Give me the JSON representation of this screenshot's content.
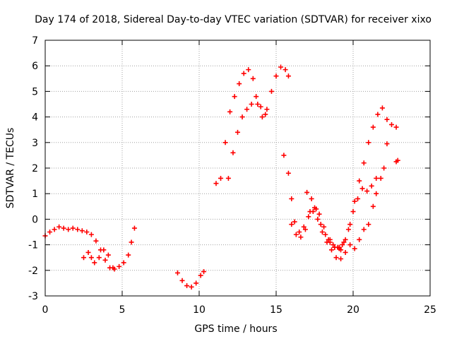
{
  "chart_data": {
    "type": "scatter",
    "title": "Day 174 of 2018, Sidereal Day-to-day VTEC variation (SDTVAR) for receiver xixo",
    "xlabel": "GPS time / hours",
    "ylabel": "SDTVAR / TECUs",
    "xlim": [
      0,
      25
    ],
    "ylim": [
      -3,
      7
    ],
    "xticks": [
      0,
      5,
      10,
      15,
      20,
      25
    ],
    "yticks": [
      -3,
      -2,
      -1,
      0,
      1,
      2,
      3,
      4,
      5,
      6,
      7
    ],
    "grid": true,
    "marker": "+",
    "color": "#ff0000",
    "series": [
      {
        "name": "arc-1",
        "x": [
          0.0,
          0.3,
          0.6,
          0.9,
          1.2,
          1.5,
          1.8,
          2.1,
          2.4,
          2.7,
          3.0,
          3.3,
          3.6,
          3.9,
          4.2,
          4.5,
          4.8,
          5.1,
          5.4,
          5.6,
          5.8
        ],
        "y": [
          -0.65,
          -0.5,
          -0.4,
          -0.3,
          -0.35,
          -0.4,
          -0.35,
          -0.4,
          -0.45,
          -0.5,
          -0.6,
          -0.85,
          -1.2,
          -1.6,
          -1.9,
          -1.95,
          -1.85,
          -1.7,
          -1.4,
          -0.9,
          -0.35
        ]
      },
      {
        "name": "arc-2",
        "x": [
          2.5,
          2.8,
          3.0,
          3.2,
          3.5,
          3.8,
          4.1,
          4.4
        ],
        "y": [
          -1.5,
          -1.3,
          -1.5,
          -1.7,
          -1.5,
          -1.2,
          -1.4,
          -1.9
        ]
      },
      {
        "name": "arc-3",
        "x": [
          8.6,
          8.9,
          9.2,
          9.5,
          9.8,
          10.1,
          10.3
        ],
        "y": [
          -2.1,
          -2.4,
          -2.6,
          -2.65,
          -2.5,
          -2.2,
          -2.05
        ]
      },
      {
        "name": "arc-4",
        "x": [
          11.1,
          11.4,
          11.7,
          12.0,
          12.3,
          12.6,
          12.9,
          13.2,
          13.5,
          13.8,
          14.1,
          14.4,
          14.7,
          15.0,
          15.3,
          15.6,
          15.8
        ],
        "y": [
          1.4,
          1.6,
          3.0,
          4.2,
          4.8,
          5.3,
          5.7,
          5.85,
          5.5,
          4.5,
          4.0,
          4.3,
          5.0,
          5.6,
          5.95,
          5.85,
          5.6
        ]
      },
      {
        "name": "arc-5",
        "x": [
          11.9,
          12.2,
          12.5,
          12.8,
          13.1,
          13.4,
          13.7,
          14.0,
          14.3
        ],
        "y": [
          1.6,
          2.6,
          3.4,
          4.0,
          4.3,
          4.5,
          4.8,
          4.4,
          4.1
        ]
      },
      {
        "name": "arc-6",
        "x": [
          15.5,
          15.8,
          16.0,
          16.2,
          16.5,
          16.8,
          17.1,
          17.4,
          17.7,
          18.0,
          18.3,
          18.6,
          18.9,
          19.2,
          19.5,
          19.8
        ],
        "y": [
          2.5,
          1.8,
          0.8,
          -0.1,
          -0.5,
          -0.3,
          0.1,
          0.3,
          0.0,
          -0.5,
          -0.9,
          -1.2,
          -1.5,
          -1.55,
          -1.3,
          -1.0
        ]
      },
      {
        "name": "arc-7",
        "x": [
          16.0,
          16.3,
          16.6,
          16.9,
          17.2,
          17.5,
          17.8,
          18.1,
          18.4,
          18.7,
          19.0,
          19.3
        ],
        "y": [
          -0.2,
          -0.6,
          -0.7,
          -0.4,
          0.3,
          0.45,
          0.2,
          -0.3,
          -0.8,
          -1.0,
          -1.1,
          -1.0
        ]
      },
      {
        "name": "arc-8",
        "x": [
          17.0,
          17.3,
          17.6,
          17.9,
          18.2,
          18.5,
          18.8,
          19.1
        ],
        "y": [
          1.05,
          0.8,
          0.4,
          -0.2,
          -0.6,
          -0.9,
          -1.1,
          -1.15
        ]
      },
      {
        "name": "arc-9",
        "x": [
          19.2,
          19.5,
          19.8,
          20.1,
          20.4,
          20.7,
          21.0,
          21.3,
          21.6,
          21.9,
          22.2,
          22.5,
          22.8
        ],
        "y": [
          -1.2,
          -0.8,
          -0.2,
          0.7,
          1.5,
          2.2,
          3.0,
          3.6,
          4.1,
          4.35,
          3.9,
          3.7,
          3.6
        ]
      },
      {
        "name": "arc-10",
        "x": [
          18.5,
          18.8,
          19.1,
          19.4,
          19.7,
          20.0,
          20.3,
          20.6,
          20.9,
          21.2,
          21.5,
          21.8,
          22.0,
          22.2
        ],
        "y": [
          -0.8,
          -1.1,
          -1.1,
          -0.9,
          -0.4,
          0.3,
          0.8,
          1.2,
          1.1,
          1.3,
          1.6,
          1.6,
          2.0,
          2.95
        ]
      },
      {
        "name": "arc-11",
        "x": [
          20.1,
          20.4,
          20.7,
          21.0,
          21.3,
          21.5
        ],
        "y": [
          -1.15,
          -0.8,
          -0.4,
          -0.2,
          0.5,
          1.0
        ]
      },
      {
        "name": "arc-12",
        "x": [
          22.8,
          22.9
        ],
        "y": [
          2.25,
          2.3
        ]
      }
    ]
  }
}
